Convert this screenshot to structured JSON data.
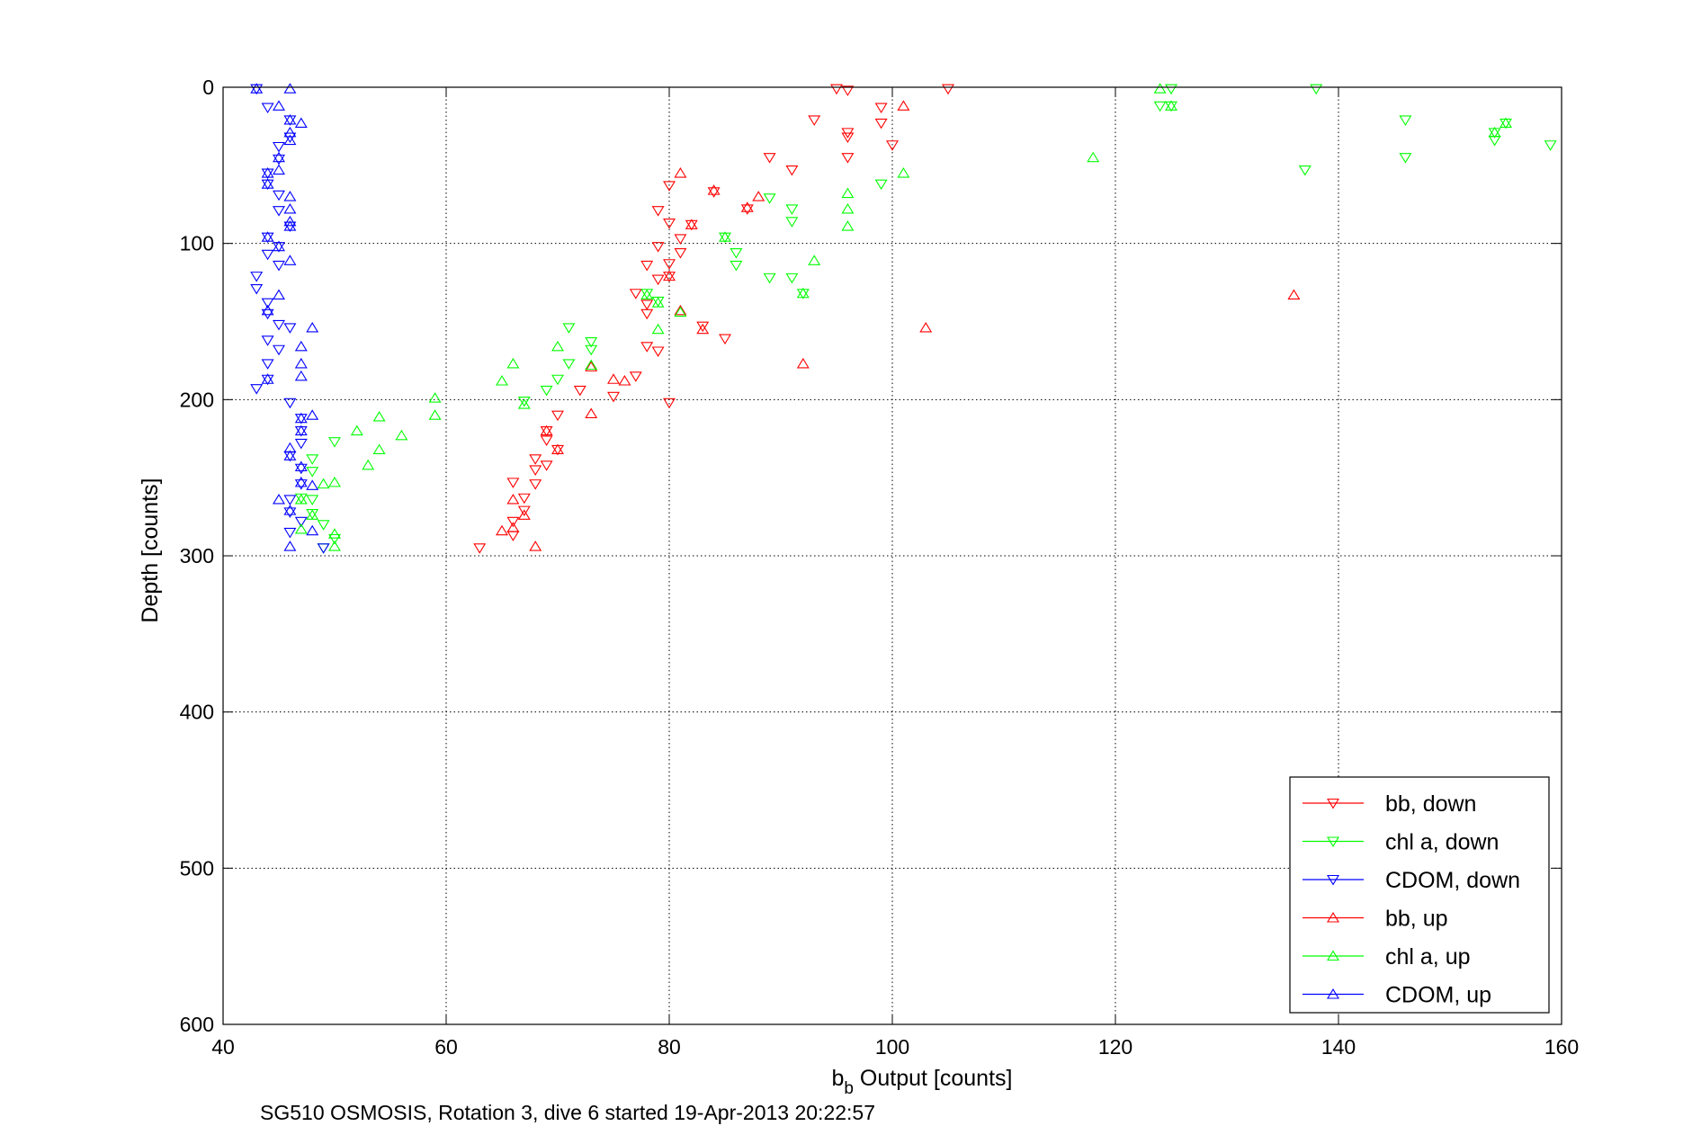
{
  "chart_data": {
    "type": "scatter",
    "xlabel_main": "b",
    "xlabel_sub": "b",
    "xlabel_rest": " Output [counts]",
    "ylabel": "Depth [counts]",
    "caption": "SG510 OSMOSIS, Rotation 3, dive 6 started 19-Apr-2013 20:22:57",
    "xlim": [
      40,
      160
    ],
    "ylim": [
      0,
      600
    ],
    "y_reversed": true,
    "grid": true,
    "legend_position": "bottom-right",
    "x_ticks": [
      40,
      60,
      80,
      100,
      120,
      140,
      160
    ],
    "y_ticks": [
      0,
      100,
      200,
      300,
      400,
      500,
      600
    ],
    "colors": {
      "red": "#ff0000",
      "green": "#00ff00",
      "blue": "#0000ff"
    },
    "series": [
      {
        "name": "bb, down",
        "color": "#ff0000",
        "marker": "triangle-down",
        "points": [
          [
            95,
            1
          ],
          [
            96,
            2
          ],
          [
            105,
            1
          ],
          [
            93,
            21
          ],
          [
            99,
            13
          ],
          [
            99,
            23
          ],
          [
            96,
            29
          ],
          [
            96,
            32
          ],
          [
            100,
            37
          ],
          [
            96,
            45
          ],
          [
            89,
            45
          ],
          [
            91,
            53
          ],
          [
            80,
            63
          ],
          [
            84,
            67
          ],
          [
            79,
            79
          ],
          [
            87,
            78
          ],
          [
            80,
            87
          ],
          [
            82,
            88
          ],
          [
            81,
            97
          ],
          [
            79,
            102
          ],
          [
            81,
            106
          ],
          [
            80,
            113
          ],
          [
            78,
            114
          ],
          [
            80,
            121
          ],
          [
            79,
            123
          ],
          [
            77,
            132
          ],
          [
            78,
            139
          ],
          [
            78,
            145
          ],
          [
            83,
            153
          ],
          [
            85,
            161
          ],
          [
            78,
            166
          ],
          [
            79,
            169
          ],
          [
            77,
            185
          ],
          [
            72,
            194
          ],
          [
            75,
            198
          ],
          [
            80,
            202
          ],
          [
            70,
            210
          ],
          [
            69,
            220
          ],
          [
            69,
            226
          ],
          [
            70,
            232
          ],
          [
            69,
            242
          ],
          [
            68,
            238
          ],
          [
            68,
            245
          ],
          [
            68,
            254
          ],
          [
            66,
            253
          ],
          [
            67,
            263
          ],
          [
            67,
            271
          ],
          [
            66,
            278
          ],
          [
            66,
            287
          ],
          [
            63,
            295
          ]
        ]
      },
      {
        "name": "chl a, down",
        "color": "#00ff00",
        "marker": "triangle-down",
        "points": [
          [
            125,
            1
          ],
          [
            138,
            1
          ],
          [
            124,
            12
          ],
          [
            125,
            12
          ],
          [
            146,
            21
          ],
          [
            155,
            23
          ],
          [
            154,
            29
          ],
          [
            154,
            34
          ],
          [
            159,
            37
          ],
          [
            146,
            45
          ],
          [
            137,
            53
          ],
          [
            99,
            62
          ],
          [
            89,
            71
          ],
          [
            91,
            78
          ],
          [
            91,
            86
          ],
          [
            85,
            96
          ],
          [
            86,
            106
          ],
          [
            86,
            114
          ],
          [
            89,
            122
          ],
          [
            91,
            122
          ],
          [
            92,
            132
          ],
          [
            78,
            132
          ],
          [
            79,
            137
          ],
          [
            70,
            187
          ],
          [
            69,
            194
          ],
          [
            67,
            201
          ],
          [
            71,
            177
          ],
          [
            73,
            168
          ],
          [
            73,
            163
          ],
          [
            71,
            154
          ],
          [
            50,
            227
          ],
          [
            48,
            238
          ],
          [
            48,
            246
          ],
          [
            48,
            264
          ],
          [
            47,
            263
          ],
          [
            48,
            273
          ],
          [
            49,
            280
          ],
          [
            50,
            289
          ],
          [
            49,
            295
          ]
        ]
      },
      {
        "name": "CDOM, down",
        "color": "#0000ff",
        "marker": "triangle-down",
        "points": [
          [
            43,
            1
          ],
          [
            44,
            13
          ],
          [
            46,
            21
          ],
          [
            46,
            32
          ],
          [
            45,
            38
          ],
          [
            45,
            46
          ],
          [
            44,
            55
          ],
          [
            44,
            62
          ],
          [
            45,
            69
          ],
          [
            45,
            79
          ],
          [
            46,
            89
          ],
          [
            44,
            96
          ],
          [
            45,
            102
          ],
          [
            44,
            107
          ],
          [
            45,
            114
          ],
          [
            43,
            121
          ],
          [
            43,
            129
          ],
          [
            44,
            138
          ],
          [
            44,
            145
          ],
          [
            45,
            152
          ],
          [
            46,
            154
          ],
          [
            44,
            162
          ],
          [
            45,
            168
          ],
          [
            44,
            177
          ],
          [
            44,
            187
          ],
          [
            43,
            193
          ],
          [
            46,
            202
          ],
          [
            47,
            212
          ],
          [
            47,
            220
          ],
          [
            47,
            228
          ],
          [
            46,
            236
          ],
          [
            47,
            244
          ],
          [
            47,
            254
          ],
          [
            46,
            264
          ],
          [
            46,
            272
          ],
          [
            47,
            278
          ],
          [
            46,
            285
          ],
          [
            49,
            295
          ]
        ]
      },
      {
        "name": "bb, up",
        "color": "#ff0000",
        "marker": "triangle-up",
        "points": [
          [
            101,
            12
          ],
          [
            81,
            55
          ],
          [
            84,
            66
          ],
          [
            87,
            77
          ],
          [
            82,
            88
          ],
          [
            88,
            70
          ],
          [
            80,
            121
          ],
          [
            81,
            143
          ],
          [
            83,
            155
          ],
          [
            92,
            177
          ],
          [
            103,
            154
          ],
          [
            136,
            133
          ],
          [
            73,
            179
          ],
          [
            75,
            187
          ],
          [
            76,
            188
          ],
          [
            73,
            209
          ],
          [
            68,
            294
          ],
          [
            65,
            284
          ],
          [
            66,
            282
          ],
          [
            66,
            264
          ],
          [
            67,
            274
          ],
          [
            69,
            220
          ],
          [
            70,
            232
          ]
        ]
      },
      {
        "name": "chl a, up",
        "color": "#00ff00",
        "marker": "triangle-up",
        "points": [
          [
            125,
            12
          ],
          [
            124,
            1
          ],
          [
            155,
            23
          ],
          [
            154,
            29
          ],
          [
            118,
            45
          ],
          [
            101,
            55
          ],
          [
            96,
            68
          ],
          [
            96,
            78
          ],
          [
            96,
            89
          ],
          [
            93,
            111
          ],
          [
            92,
            132
          ],
          [
            85,
            96
          ],
          [
            81,
            144
          ],
          [
            79,
            155
          ],
          [
            79,
            138
          ],
          [
            78,
            133
          ],
          [
            65,
            188
          ],
          [
            66,
            177
          ],
          [
            70,
            166
          ],
          [
            73,
            178
          ],
          [
            67,
            203
          ],
          [
            59,
            199
          ],
          [
            59,
            210
          ],
          [
            54,
            211
          ],
          [
            52,
            220
          ],
          [
            56,
            223
          ],
          [
            54,
            232
          ],
          [
            53,
            242
          ],
          [
            50,
            253
          ],
          [
            49,
            254
          ],
          [
            47,
            264
          ],
          [
            47,
            283
          ],
          [
            48,
            274
          ],
          [
            50,
            286
          ],
          [
            50,
            294
          ]
        ]
      },
      {
        "name": "CDOM, up",
        "color": "#0000ff",
        "marker": "triangle-up",
        "points": [
          [
            43,
            1
          ],
          [
            46,
            1
          ],
          [
            45,
            12
          ],
          [
            46,
            21
          ],
          [
            47,
            23
          ],
          [
            46,
            29
          ],
          [
            46,
            34
          ],
          [
            45,
            45
          ],
          [
            45,
            53
          ],
          [
            44,
            55
          ],
          [
            44,
            62
          ],
          [
            46,
            70
          ],
          [
            46,
            78
          ],
          [
            46,
            86
          ],
          [
            46,
            89
          ],
          [
            44,
            96
          ],
          [
            45,
            102
          ],
          [
            46,
            111
          ],
          [
            45,
            133
          ],
          [
            44,
            143
          ],
          [
            48,
            154
          ],
          [
            47,
            166
          ],
          [
            47,
            177
          ],
          [
            47,
            185
          ],
          [
            44,
            187
          ],
          [
            48,
            210
          ],
          [
            47,
            212
          ],
          [
            47,
            220
          ],
          [
            46,
            231
          ],
          [
            46,
            236
          ],
          [
            48,
            255
          ],
          [
            47,
            253
          ],
          [
            47,
            243
          ],
          [
            45,
            264
          ],
          [
            46,
            271
          ],
          [
            48,
            284
          ],
          [
            46,
            294
          ]
        ]
      }
    ]
  }
}
